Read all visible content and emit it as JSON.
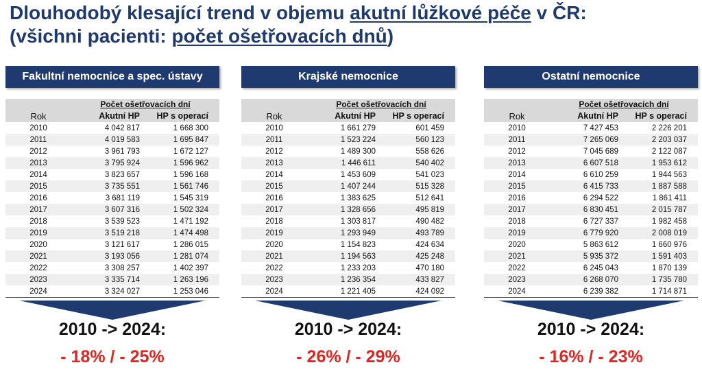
{
  "title": {
    "line1_a": "Dlouhodobý klesající trend v objemu ",
    "line1_u": "akutní lůžkové péče",
    "line1_b": " v ČR:",
    "line2_a": "(všichni pacienti: ",
    "line2_u": "počet ošetřovacích dnů",
    "line2_b": ")"
  },
  "colors": {
    "title": "#1f3a6e",
    "header_bg": "#1f3a6e",
    "percent": "#e8231f",
    "row_alt": "#efefef"
  },
  "table_labels": {
    "group": "Počet ošetřovacích dní",
    "rok": "Rok",
    "akutni": "Akutní HP",
    "operaci": "HP s operací"
  },
  "panels": [
    {
      "header": "Fakultní nemocnice a spec. ústavy",
      "summary_range": "2010 -> 2024:",
      "summary_percent": "- 18% / - 25%",
      "rows": [
        {
          "rok": "2010",
          "akutni": "4 042 817",
          "operaci": "1 668 300"
        },
        {
          "rok": "2011",
          "akutni": "4 019 583",
          "operaci": "1 695 847"
        },
        {
          "rok": "2012",
          "akutni": "3 961 793",
          "operaci": "1 672 127"
        },
        {
          "rok": "2013",
          "akutni": "3 795 924",
          "operaci": "1 596 962"
        },
        {
          "rok": "2014",
          "akutni": "3 823 657",
          "operaci": "1 596 168"
        },
        {
          "rok": "2015",
          "akutni": "3 735 551",
          "operaci": "1 561 746"
        },
        {
          "rok": "2016",
          "akutni": "3 681 119",
          "operaci": "1 545 319"
        },
        {
          "rok": "2017",
          "akutni": "3 607 316",
          "operaci": "1 502 324"
        },
        {
          "rok": "2018",
          "akutni": "3 539 523",
          "operaci": "1 471 192"
        },
        {
          "rok": "2019",
          "akutni": "3 519 218",
          "operaci": "1 474 498"
        },
        {
          "rok": "2020",
          "akutni": "3 121 617",
          "operaci": "1 286 015"
        },
        {
          "rok": "2021",
          "akutni": "3 193 056",
          "operaci": "1 281 074"
        },
        {
          "rok": "2022",
          "akutni": "3 308 257",
          "operaci": "1 402 397"
        },
        {
          "rok": "2023",
          "akutni": "3 335 714",
          "operaci": "1 263 196"
        },
        {
          "rok": "2024",
          "akutni": "3 324 027",
          "operaci": "1 253 046"
        }
      ]
    },
    {
      "header": "Krajské nemocnice",
      "summary_range": "2010 -> 2024:",
      "summary_percent": "- 26% / - 29%",
      "rows": [
        {
          "rok": "2010",
          "akutni": "1 661 279",
          "operaci": "601 459"
        },
        {
          "rok": "2011",
          "akutni": "1 523 224",
          "operaci": "560 123"
        },
        {
          "rok": "2012",
          "akutni": "1 489 300",
          "operaci": "558 626"
        },
        {
          "rok": "2013",
          "akutni": "1 446 611",
          "operaci": "540 402"
        },
        {
          "rok": "2014",
          "akutni": "1 453 609",
          "operaci": "541 023"
        },
        {
          "rok": "2015",
          "akutni": "1 407 244",
          "operaci": "515 328"
        },
        {
          "rok": "2016",
          "akutni": "1 383 625",
          "operaci": "512 641"
        },
        {
          "rok": "2017",
          "akutni": "1 328 656",
          "operaci": "495 819"
        },
        {
          "rok": "2018",
          "akutni": "1 303 817",
          "operaci": "490 482"
        },
        {
          "rok": "2019",
          "akutni": "1 293 949",
          "operaci": "493 789"
        },
        {
          "rok": "2020",
          "akutni": "1 154 823",
          "operaci": "424 634"
        },
        {
          "rok": "2021",
          "akutni": "1 194 563",
          "operaci": "425 248"
        },
        {
          "rok": "2022",
          "akutni": "1 233 203",
          "operaci": "470 180"
        },
        {
          "rok": "2023",
          "akutni": "1 236 354",
          "operaci": "433 827"
        },
        {
          "rok": "2024",
          "akutni": "1 221 405",
          "operaci": "424 092"
        }
      ]
    },
    {
      "header": "Ostatní nemocnice",
      "summary_range": "2010 -> 2024:",
      "summary_percent": "- 16% / - 23%",
      "rows": [
        {
          "rok": "2010",
          "akutni": "7 427 453",
          "operaci": "2 226 201"
        },
        {
          "rok": "2011",
          "akutni": "7 265 069",
          "operaci": "2 203 037"
        },
        {
          "rok": "2012",
          "akutni": "7 045 689",
          "operaci": "2 122 087"
        },
        {
          "rok": "2013",
          "akutni": "6 607 518",
          "operaci": "1 953 612"
        },
        {
          "rok": "2014",
          "akutni": "6 610 259",
          "operaci": "1 944 563"
        },
        {
          "rok": "2015",
          "akutni": "6 415 733",
          "operaci": "1 887 588"
        },
        {
          "rok": "2016",
          "akutni": "6 294 522",
          "operaci": "1 861 411"
        },
        {
          "rok": "2017",
          "akutni": "6 830 451",
          "operaci": "2 015 787"
        },
        {
          "rok": "2018",
          "akutni": "6 727 337",
          "operaci": "1 982 458"
        },
        {
          "rok": "2019",
          "akutni": "6 779 920",
          "operaci": "2 008 019"
        },
        {
          "rok": "2020",
          "akutni": "5 863 612",
          "operaci": "1 660 976"
        },
        {
          "rok": "2021",
          "akutni": "5 935 372",
          "operaci": "1 591 403"
        },
        {
          "rok": "2022",
          "akutni": "6 245 043",
          "operaci": "1 870 139"
        },
        {
          "rok": "2023",
          "akutni": "6 268 070",
          "operaci": "1 735 780"
        },
        {
          "rok": "2024",
          "akutni": "6 239 382",
          "operaci": "1 714 871"
        }
      ]
    }
  ]
}
